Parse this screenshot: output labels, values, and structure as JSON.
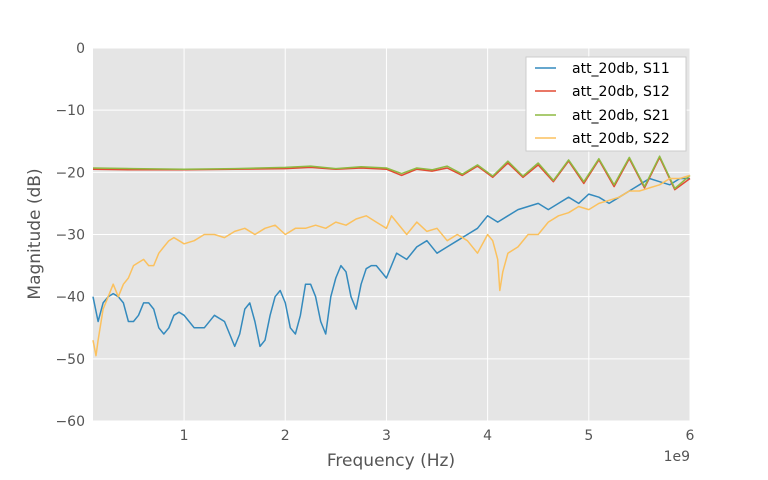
{
  "chart_data": {
    "type": "line",
    "title": "",
    "xlabel": "Frequency (Hz)",
    "ylabel": "Magnitude (dB)",
    "x_offset_text": "1e9",
    "xlim": [
      0.1,
      6
    ],
    "ylim": [
      -60,
      0
    ],
    "x_ticks": [
      1,
      2,
      3,
      4,
      5,
      6
    ],
    "y_ticks": [
      0,
      -10,
      -20,
      -30,
      -40,
      -50,
      -60
    ],
    "grid": true,
    "legend_position": "top-right",
    "colors": {
      "background": "#e5e5e5",
      "grid": "#ffffff",
      "s11": "#348abd",
      "s12": "#e24a33",
      "s21": "#8eba42",
      "s22": "#fbc15e"
    },
    "series": [
      {
        "name": "att_20db, S11",
        "color": "#348abd",
        "x": [
          0.1,
          0.15,
          0.2,
          0.25,
          0.3,
          0.35,
          0.4,
          0.45,
          0.5,
          0.55,
          0.6,
          0.65,
          0.7,
          0.75,
          0.8,
          0.85,
          0.9,
          0.95,
          1.0,
          1.05,
          1.1,
          1.2,
          1.3,
          1.4,
          1.5,
          1.55,
          1.6,
          1.65,
          1.7,
          1.75,
          1.8,
          1.85,
          1.9,
          1.95,
          2.0,
          2.05,
          2.1,
          2.15,
          2.2,
          2.25,
          2.3,
          2.35,
          2.4,
          2.45,
          2.5,
          2.55,
          2.6,
          2.65,
          2.7,
          2.75,
          2.8,
          2.85,
          2.9,
          3.0,
          3.1,
          3.2,
          3.3,
          3.4,
          3.5,
          3.6,
          3.7,
          3.8,
          3.9,
          4.0,
          4.1,
          4.2,
          4.3,
          4.4,
          4.5,
          4.6,
          4.7,
          4.8,
          4.9,
          5.0,
          5.1,
          5.2,
          5.3,
          5.4,
          5.5,
          5.6,
          5.7,
          5.8,
          5.9,
          6.0
        ],
        "y": [
          -40,
          -44,
          -41,
          -40,
          -39.5,
          -40,
          -41,
          -44,
          -44,
          -43,
          -41,
          -41,
          -42,
          -45,
          -46,
          -45,
          -43,
          -42.5,
          -43,
          -44,
          -45,
          -45,
          -43,
          -44,
          -48,
          -46,
          -42,
          -41,
          -44,
          -48,
          -47,
          -43,
          -40,
          -39,
          -41,
          -45,
          -46,
          -43,
          -38,
          -38,
          -40,
          -44,
          -46,
          -40,
          -37,
          -35,
          -36,
          -40,
          -42,
          -38,
          -35.5,
          -35,
          -35,
          -37,
          -33,
          -34,
          -32,
          -31,
          -33,
          -32,
          -31,
          -30,
          -29,
          -27,
          -28,
          -27,
          -26,
          -25.5,
          -25,
          -26,
          -25,
          -24,
          -25,
          -23.5,
          -24,
          -25,
          -24,
          -23,
          -22,
          -21,
          -21.5,
          -22,
          -21,
          -21
        ]
      },
      {
        "name": "att_20db, S12",
        "color": "#e24a33",
        "x": [
          0.1,
          0.5,
          1.0,
          1.5,
          2.0,
          2.25,
          2.5,
          2.75,
          3.0,
          3.15,
          3.3,
          3.45,
          3.6,
          3.75,
          3.9,
          4.05,
          4.2,
          4.35,
          4.5,
          4.65,
          4.8,
          4.95,
          5.1,
          5.25,
          5.4,
          5.55,
          5.7,
          5.85,
          6.0
        ],
        "y": [
          -19.5,
          -19.6,
          -19.6,
          -19.5,
          -19.4,
          -19.2,
          -19.5,
          -19.3,
          -19.5,
          -20.5,
          -19.5,
          -19.8,
          -19.3,
          -20.5,
          -19.0,
          -20.8,
          -18.5,
          -20.8,
          -18.8,
          -21.5,
          -18.2,
          -21.8,
          -18.0,
          -22.3,
          -17.8,
          -22.5,
          -17.6,
          -22.8,
          -21.0
        ]
      },
      {
        "name": "att_20db, S21",
        "color": "#8eba42",
        "x": [
          0.1,
          0.5,
          1.0,
          1.5,
          2.0,
          2.25,
          2.5,
          2.75,
          3.0,
          3.15,
          3.3,
          3.45,
          3.6,
          3.75,
          3.9,
          4.05,
          4.2,
          4.35,
          4.5,
          4.65,
          4.8,
          4.95,
          5.1,
          5.25,
          5.4,
          5.55,
          5.7,
          5.85,
          6.0
        ],
        "y": [
          -19.3,
          -19.4,
          -19.5,
          -19.4,
          -19.2,
          -19.0,
          -19.4,
          -19.1,
          -19.3,
          -20.2,
          -19.3,
          -19.6,
          -19.0,
          -20.3,
          -18.8,
          -20.6,
          -18.2,
          -20.6,
          -18.5,
          -21.3,
          -18.0,
          -21.5,
          -17.8,
          -22.0,
          -17.6,
          -22.3,
          -17.4,
          -22.6,
          -20.5
        ]
      },
      {
        "name": "att_20db, S22",
        "color": "#fbc15e",
        "x": [
          0.1,
          0.13,
          0.15,
          0.2,
          0.25,
          0.3,
          0.35,
          0.4,
          0.45,
          0.5,
          0.55,
          0.6,
          0.65,
          0.7,
          0.75,
          0.8,
          0.85,
          0.9,
          0.95,
          1.0,
          1.1,
          1.2,
          1.3,
          1.4,
          1.5,
          1.6,
          1.7,
          1.8,
          1.9,
          2.0,
          2.1,
          2.2,
          2.3,
          2.4,
          2.5,
          2.6,
          2.7,
          2.8,
          2.9,
          3.0,
          3.05,
          3.1,
          3.2,
          3.3,
          3.4,
          3.5,
          3.6,
          3.7,
          3.8,
          3.9,
          4.0,
          4.05,
          4.1,
          4.12,
          4.15,
          4.2,
          4.3,
          4.4,
          4.5,
          4.6,
          4.7,
          4.8,
          4.9,
          5.0,
          5.1,
          5.2,
          5.3,
          5.4,
          5.5,
          5.6,
          5.7,
          5.8,
          5.9,
          6.0
        ],
        "y": [
          -47,
          -49.5,
          -47,
          -42,
          -40,
          -38,
          -40,
          -38,
          -37,
          -35,
          -34.5,
          -34,
          -35,
          -35,
          -33,
          -32,
          -31,
          -30.5,
          -31,
          -31.5,
          -31,
          -30,
          -30,
          -30.5,
          -29.5,
          -29,
          -30,
          -29,
          -28.5,
          -30,
          -29,
          -29,
          -28.5,
          -29,
          -28,
          -28.5,
          -27.5,
          -27,
          -28,
          -29,
          -27,
          -28,
          -30,
          -28,
          -29.5,
          -29,
          -31,
          -30,
          -31,
          -33,
          -30,
          -31,
          -34,
          -39,
          -36,
          -33,
          -32,
          -30,
          -30,
          -28,
          -27,
          -26.5,
          -25.5,
          -26,
          -25,
          -24.5,
          -24,
          -23,
          -23,
          -22.5,
          -22,
          -21,
          -21,
          -20.5
        ]
      }
    ]
  }
}
